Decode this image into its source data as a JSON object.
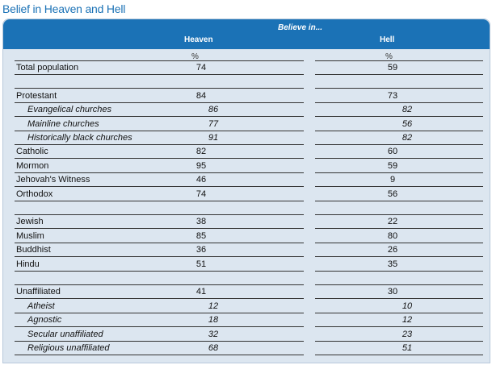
{
  "title": "Belief in Heaven and Hell",
  "header": {
    "believe_in": "Believe in...",
    "heaven": "Heaven",
    "hell": "Hell",
    "pct": "%"
  },
  "rows": [
    {
      "label": "Total population",
      "heaven": "74",
      "hell": "59",
      "indent": false,
      "gap_before": false
    },
    {
      "label": "Protestant",
      "heaven": "84",
      "hell": "73",
      "indent": false,
      "gap_before": true
    },
    {
      "label": "Evangelical churches",
      "heaven": "86",
      "hell": "82",
      "indent": true,
      "gap_before": false
    },
    {
      "label": "Mainline churches",
      "heaven": "77",
      "hell": "56",
      "indent": true,
      "gap_before": false
    },
    {
      "label": "Historically black churches",
      "heaven": "91",
      "hell": "82",
      "indent": true,
      "gap_before": false
    },
    {
      "label": "Catholic",
      "heaven": "82",
      "hell": "60",
      "indent": false,
      "gap_before": false
    },
    {
      "label": "Mormon",
      "heaven": "95",
      "hell": "59",
      "indent": false,
      "gap_before": false
    },
    {
      "label": "Jehovah's Witness",
      "heaven": "46",
      "hell": "9",
      "indent": false,
      "gap_before": false
    },
    {
      "label": "Orthodox",
      "heaven": "74",
      "hell": "56",
      "indent": false,
      "gap_before": false
    },
    {
      "label": "Jewish",
      "heaven": "38",
      "hell": "22",
      "indent": false,
      "gap_before": true
    },
    {
      "label": "Muslim",
      "heaven": "85",
      "hell": "80",
      "indent": false,
      "gap_before": false
    },
    {
      "label": "Buddhist",
      "heaven": "36",
      "hell": "26",
      "indent": false,
      "gap_before": false
    },
    {
      "label": "Hindu",
      "heaven": "51",
      "hell": "35",
      "indent": false,
      "gap_before": false
    },
    {
      "label": "Unaffiliated",
      "heaven": "41",
      "hell": "30",
      "indent": false,
      "gap_before": true
    },
    {
      "label": "Atheist",
      "heaven": "12",
      "hell": "10",
      "indent": true,
      "gap_before": false
    },
    {
      "label": "Agnostic",
      "heaven": "18",
      "hell": "12",
      "indent": true,
      "gap_before": false
    },
    {
      "label": "Secular unaffiliated",
      "heaven": "32",
      "hell": "23",
      "indent": true,
      "gap_before": false
    },
    {
      "label": "Religious unaffiliated",
      "heaven": "68",
      "hell": "51",
      "indent": true,
      "gap_before": false
    }
  ]
}
